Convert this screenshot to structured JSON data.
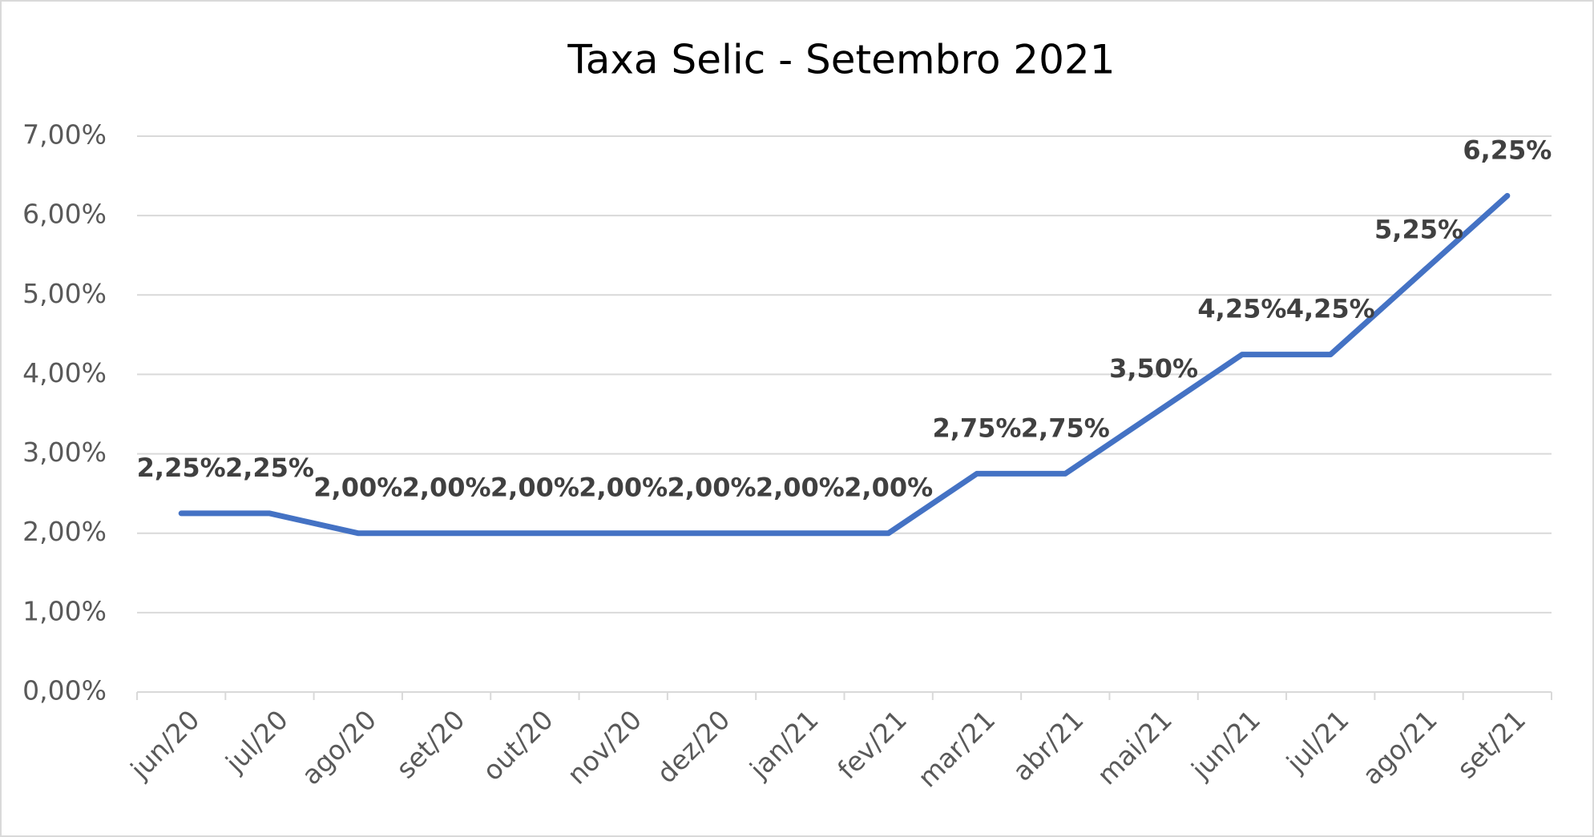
{
  "chart_data": {
    "type": "line",
    "title": "Taxa Selic - Setembro 2021",
    "categories": [
      "jun/20",
      "jul/20",
      "ago/20",
      "set/20",
      "out/20",
      "nov/20",
      "dez/20",
      "jan/21",
      "fev/21",
      "mar/21",
      "abr/21",
      "mai/21",
      "jun/21",
      "jul/21",
      "ago/21",
      "set/21"
    ],
    "values": [
      2.25,
      2.25,
      2,
      2,
      2,
      2,
      2,
      2,
      2,
      2.75,
      2.75,
      3.5,
      4.25,
      4.25,
      5.25,
      6.25
    ],
    "value_labels": [
      "2,25%",
      "2,25%",
      "2,00%",
      "2,00%",
      "2,00%",
      "2,00%",
      "2,00%",
      "2,00%",
      "2,00%",
      "2,75%",
      "2,75%",
      "3,50%",
      "4,25%",
      "4,25%",
      "5,25%",
      "6,25%"
    ],
    "color": "#4472c4",
    "ylim": [
      0,
      7
    ],
    "yticks": [
      {
        "value": 0,
        "label": "0,00%"
      },
      {
        "value": 1,
        "label": "1,00%"
      },
      {
        "value": 2,
        "label": "2,00%"
      },
      {
        "value": 3,
        "label": "3,00%"
      },
      {
        "value": 4,
        "label": "4,00%"
      },
      {
        "value": 5,
        "label": "5,00%"
      },
      {
        "value": 6,
        "label": "6,00%"
      },
      {
        "value": 7,
        "label": "7,00%"
      }
    ],
    "grid": true
  }
}
